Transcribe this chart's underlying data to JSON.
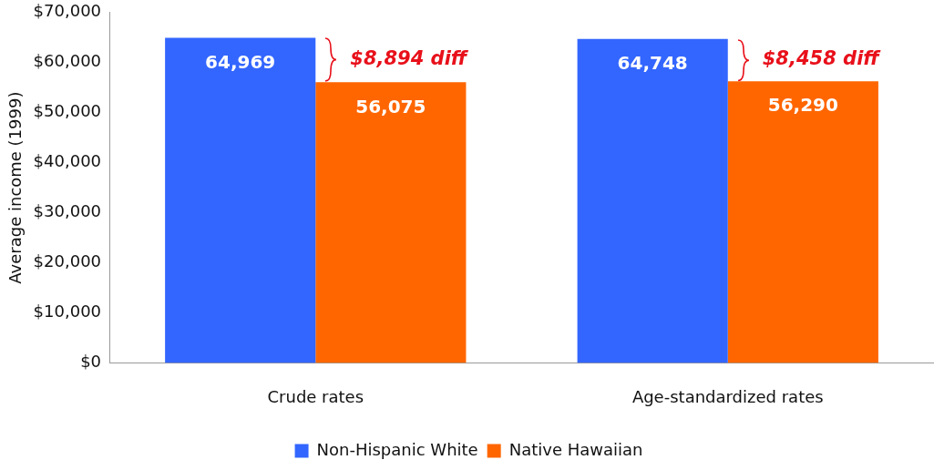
{
  "chart_data": {
    "type": "bar",
    "ylabel": "Average income (1999)",
    "categories": [
      "Crude rates",
      "Age-standardized rates"
    ],
    "series": [
      {
        "name": "Non-Hispanic White",
        "color": "#3366ff",
        "values": [
          64969,
          64748
        ],
        "value_labels": [
          "64,969",
          "64,748"
        ]
      },
      {
        "name": "Native Hawaiian",
        "color": "#ff6600",
        "values": [
          56075,
          56290
        ],
        "value_labels": [
          "56,075",
          "56,290"
        ]
      }
    ],
    "ylim": [
      0,
      70000
    ],
    "yticks": [
      {
        "value": 0,
        "label": "$0"
      },
      {
        "value": 10000,
        "label": "$10,000"
      },
      {
        "value": 20000,
        "label": "$20,000"
      },
      {
        "value": 30000,
        "label": "$30,000"
      },
      {
        "value": 40000,
        "label": "$40,000"
      },
      {
        "value": 50000,
        "label": "$50,000"
      },
      {
        "value": 60000,
        "label": "$60,000"
      },
      {
        "value": 70000,
        "label": "$70,000"
      }
    ],
    "grid": false,
    "legend": "bottom",
    "annotations": [
      "$8,894 diff",
      "$8,458 diff"
    ]
  }
}
